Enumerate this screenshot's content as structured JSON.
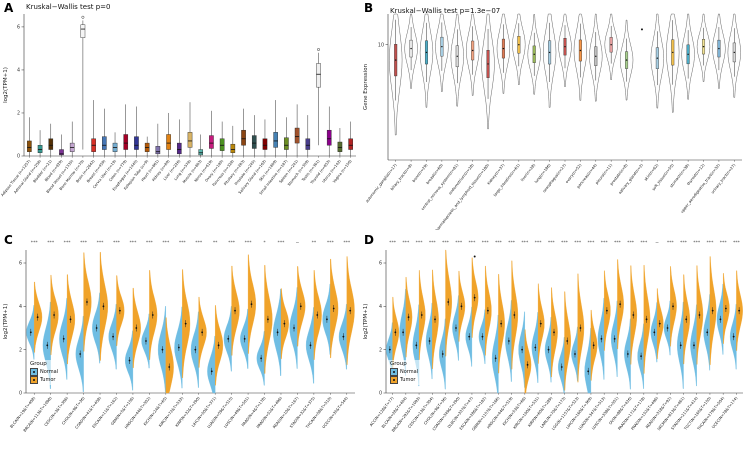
{
  "panel_tags": [
    "A",
    "B",
    "C",
    "D"
  ],
  "chart_data": [
    {
      "panel": "A",
      "type": "box",
      "title": "Kruskal−Wallis test p=0",
      "ylabel": "log2(TPM+1)",
      "ylim": [
        0,
        6.6
      ],
      "yticks": [
        0,
        2,
        4,
        6
      ],
      "categories": [
        "Adipose Tissue (n=1257)",
        "Adrenal Gland (n=258)",
        "Bladder (n=21)",
        "Blood (n=929)",
        "Blood Vessel (n=1335)",
        "Bone Marrow (n=70)",
        "Brain (n=2642)",
        "Breast (n=459)",
        "Cervix Uteri (n=19)",
        "Colon (n=779)",
        "Esophagus (n=1445)",
        "Fallopian Tube (n=9)",
        "Heart (n=861)",
        "Kidney (n=89)",
        "Liver (n=226)",
        "Lung (n=578)",
        "Muscle (n=803)",
        "Nerve (n=619)",
        "Ovary (n=180)",
        "Pancreas (n=328)",
        "Pituitary (n=283)",
        "Prostate (n=245)",
        "Salivary Gland (n=162)",
        "Skin (n=1809)",
        "Small Intestine (n=187)",
        "Spleen (n=241)",
        "Stomach (n=359)",
        "Testis (n=361)",
        "Thyroid (n=653)",
        "Uterus (n=142)",
        "Vagina (n=156)"
      ],
      "boxes": [
        [
          0,
          0.2,
          0.4,
          0.7,
          1.8
        ],
        [
          0,
          0.15,
          0.3,
          0.5,
          1.2
        ],
        [
          0,
          0.3,
          0.5,
          0.8,
          1.5
        ],
        [
          0,
          0.05,
          0.1,
          0.3,
          1.0
        ],
        [
          0,
          0.2,
          0.4,
          0.6,
          1.6
        ],
        [
          0.3,
          5.5,
          5.9,
          6.1,
          6.3
        ],
        [
          0,
          0.2,
          0.5,
          0.8,
          2.6
        ],
        [
          0,
          0.3,
          0.5,
          0.9,
          2.2
        ],
        [
          0,
          0.2,
          0.4,
          0.6,
          1.1
        ],
        [
          0,
          0.3,
          0.6,
          1.0,
          2.4
        ],
        [
          0,
          0.3,
          0.5,
          0.9,
          2.3
        ],
        [
          0,
          0.2,
          0.4,
          0.6,
          0.9
        ],
        [
          0,
          0.1,
          0.2,
          0.45,
          1.5
        ],
        [
          0,
          0.3,
          0.6,
          1.0,
          2.0
        ],
        [
          0,
          0.1,
          0.3,
          0.6,
          1.7
        ],
        [
          0,
          0.4,
          0.7,
          1.1,
          2.5
        ],
        [
          0,
          0.05,
          0.15,
          0.3,
          1.0
        ],
        [
          0,
          0.35,
          0.6,
          0.95,
          2.1
        ],
        [
          0,
          0.25,
          0.5,
          0.8,
          1.6
        ],
        [
          0,
          0.15,
          0.3,
          0.55,
          1.4
        ],
        [
          0,
          0.5,
          0.8,
          1.2,
          2.2
        ],
        [
          0,
          0.35,
          0.6,
          0.95,
          1.9
        ],
        [
          0,
          0.3,
          0.5,
          0.8,
          1.7
        ],
        [
          0,
          0.4,
          0.7,
          1.1,
          2.6
        ],
        [
          0,
          0.3,
          0.5,
          0.85,
          1.8
        ],
        [
          0,
          0.6,
          0.9,
          1.3,
          2.4
        ],
        [
          0,
          0.3,
          0.5,
          0.8,
          1.9
        ],
        [
          0.5,
          3.2,
          3.8,
          4.3,
          4.8
        ],
        [
          0,
          0.5,
          0.8,
          1.2,
          2.3
        ],
        [
          0,
          0.2,
          0.4,
          0.65,
          1.3
        ],
        [
          0,
          0.3,
          0.5,
          0.8,
          1.6
        ]
      ],
      "colors": [
        "#8c510a",
        "#35978f",
        "#543005",
        "#7b3294",
        "#c2a5cf",
        "#f5f5f5",
        "#d73027",
        "#4575b4",
        "#74add1",
        "#a50026",
        "#313695",
        "#b35806",
        "#8073ac",
        "#e08214",
        "#542788",
        "#d8b365",
        "#5ab4ac",
        "#c51b7d",
        "#4d9221",
        "#b8860b",
        "#8b4513",
        "#2f4f4f",
        "#800000",
        "#4682b4",
        "#6b8e23",
        "#a0522d",
        "#483d8b",
        "#f0f0f0",
        "#8b008b",
        "#556b2f",
        "#b22222"
      ],
      "outliers": [
        [
          5,
          6.45
        ],
        [
          27,
          4.95
        ]
      ]
    },
    {
      "panel": "B",
      "type": "violin",
      "title": "Kruskal−Wallis test p=1.3e−07",
      "ylabel": "Gene Expression",
      "ylim": [
        4,
        11.6
      ],
      "yticks": [
        10
      ],
      "categories": [
        "autonomic_ganglia(n=17)",
        "biliary_tract(n=8)",
        "bone(n=29)",
        "breast(n=60)",
        "central_nervous_system(n=81)",
        "endometrium(n=28)",
        "haematopoietic_and_lymphoid_tissue(n=180)",
        "kidney(n=37)",
        "large_intestine(n=61)",
        "liver(n=28)",
        "lung(n=186)",
        "oesophagus(n=27)",
        "ovary(n=52)",
        "pancreas(n=44)",
        "pleura(n=11)",
        "prostate(n=8)",
        "salivary_gland(n=2)",
        "skin(n=62)",
        "soft_tissue(n=55)",
        "stomach(n=38)",
        "thyroid(n=12)",
        "upper_aerodigestive_tract(n=32)",
        "urinary_tract(n=27)"
      ],
      "medians": [
        9.2,
        9.8,
        9.6,
        9.9,
        9.4,
        9.7,
        9.0,
        9.8,
        10.0,
        9.5,
        9.6,
        9.9,
        9.7,
        9.4,
        10.0,
        9.2,
        10.8,
        9.3,
        9.6,
        9.5,
        9.9,
        9.8,
        9.6
      ],
      "spreads": [
        1.5,
        0.8,
        1.1,
        0.9,
        1.0,
        0.9,
        1.3,
        0.9,
        0.8,
        0.8,
        1.1,
        0.8,
        1.0,
        0.9,
        0.7,
        0.8,
        0.15,
        1.0,
        1.2,
        0.9,
        0.7,
        0.8,
        0.9
      ],
      "box_colors": [
        "#C0504D",
        "#E6E6E6",
        "#4BACC6",
        "#A6CEE3",
        "#D9D9D9",
        "#F4A582",
        "#C0504D",
        "#E07B54",
        "#F2C14E",
        "#9BBB59",
        "#A6CEE3",
        "#C0504D",
        "#F79646",
        "#BFBFBF",
        "#E8A0A0",
        "#A9D18E",
        "#404040",
        "#A6CEE3",
        "#F2C14E",
        "#4BACC6",
        "#F2E394",
        "#7FB3D5",
        "#D9D9D9"
      ],
      "violin_fill": "#FDFDFD",
      "point_only": [
        16
      ]
    },
    {
      "panel": "C",
      "type": "split-violin",
      "ylabel": "log2(TPM+1)",
      "ylim": [
        0,
        6.6
      ],
      "yticks": [
        0,
        2,
        4,
        6
      ],
      "categories": [
        "BLCA(N=19&T=408)",
        "BRCA(N=113&T=1098)",
        "CESC(N=3&T=306)",
        "CHOL(N=9&T=36)",
        "COAD(N=41&T=458)",
        "ESCA(N=11&T=162)",
        "GBM(N=5&T=156)",
        "HNSC(N=44&T=502)",
        "KICH(N=24&T=65)",
        "KIRC(N=72&T=533)",
        "KIRP(N=32&T=290)",
        "LIHC(N=50&T=371)",
        "LUAD(N=59&T=515)",
        "LUSC(N=49&T=501)",
        "PAAD(N=4&T=178)",
        "PRAD(N=52&T=496)",
        "READ(N=10&T=167)",
        "STAD(N=32&T=375)",
        "THCA(N=58&T=510)",
        "UCEC(N=35&T=544)"
      ],
      "normal": [
        2.8,
        2.2,
        2.5,
        1.8,
        3.0,
        2.6,
        1.5,
        2.4,
        2.0,
        2.1,
        2.0,
        1.0,
        2.5,
        2.5,
        1.6,
        2.8,
        3.0,
        2.2,
        3.4,
        2.6
      ],
      "tumor": [
        3.5,
        3.6,
        3.4,
        4.2,
        4.0,
        3.8,
        3.0,
        3.6,
        1.2,
        3.2,
        2.8,
        2.2,
        3.8,
        4.1,
        3.4,
        3.2,
        4.0,
        3.6,
        3.9,
        3.8
      ],
      "sig": [
        "***",
        "***",
        "***",
        "***",
        "***",
        "***",
        "***",
        "***",
        "***",
        "***",
        "***",
        "**",
        "***",
        "***",
        "*",
        "***",
        "−",
        "**",
        "***",
        "***"
      ],
      "legend": {
        "title": "Group",
        "items": [
          {
            "label": "Normal",
            "color": "#6FBDE3"
          },
          {
            "label": "Tumor",
            "color": "#F0A32A"
          }
        ]
      }
    },
    {
      "panel": "D",
      "type": "split-violin",
      "ylabel": "log2(TPM+1)",
      "ylim": [
        0,
        6.6
      ],
      "yticks": [
        0,
        2,
        4,
        6
      ],
      "categories": [
        "ACC(N=128&T=77)",
        "BLCA(N=28&T=404)",
        "BRCA(N=292&T=1093)",
        "CESC(N=13&T=304)",
        "CHOL(N=9&T=36)",
        "COAD(N=349&T=290)",
        "DLBC(N=337&T=47)",
        "ESCA(N=286&T=182)",
        "GBM(N=1157&T=166)",
        "HNSC(N=44&T=519)",
        "KICH(N=53&T=66)",
        "KIRC(N=100&T=531)",
        "KIRP(N=60&T=289)",
        "LAML(N=70&T=173)",
        "LGG(N=1157&T=523)",
        "LIHC(N=160&T=369)",
        "LUAD(N=347&T=513)",
        "LUSC(N=338&T=501)",
        "OV(N=88&T=426)",
        "PAAD(N=171&T=178)",
        "PRAD(N=152&T=496)",
        "READ(N=318&T=92)",
        "SKCM(N=813&T=461)",
        "STAD(N=211&T=414)",
        "TGCT(N=165&T=150)",
        "THCA(N=279&T=504)",
        "UCEC(N=78&T=174)"
      ],
      "normal": [
        2.0,
        2.8,
        2.2,
        2.4,
        1.8,
        3.0,
        2.6,
        2.6,
        1.6,
        2.4,
        2.0,
        2.1,
        2.0,
        1.2,
        1.8,
        1.0,
        2.5,
        2.5,
        1.8,
        1.7,
        2.8,
        3.0,
        2.2,
        2.2,
        2.8,
        3.4,
        2.6
      ],
      "tumor": [
        2.8,
        3.5,
        3.6,
        3.4,
        4.2,
        4.0,
        4.4,
        3.8,
        3.2,
        3.6,
        1.3,
        3.2,
        2.8,
        2.4,
        3.0,
        2.2,
        3.8,
        4.1,
        3.6,
        3.4,
        3.2,
        4.0,
        3.4,
        3.6,
        3.8,
        3.9,
        3.8
      ],
      "sig": [
        "***",
        "***",
        "***",
        "***",
        "***",
        "***",
        "***",
        "***",
        "***",
        "***",
        "***",
        "***",
        "***",
        "***",
        "***",
        "***",
        "***",
        "***",
        "***",
        "***",
        "−",
        "***",
        "***",
        "***",
        "***",
        "***",
        "***"
      ],
      "outliers": [
        [
          6,
          6.3
        ]
      ],
      "legend": {
        "title": "Group",
        "items": [
          {
            "label": "Normal",
            "color": "#6FBDE3"
          },
          {
            "label": "Tumor",
            "color": "#F0A32A"
          }
        ]
      }
    }
  ]
}
